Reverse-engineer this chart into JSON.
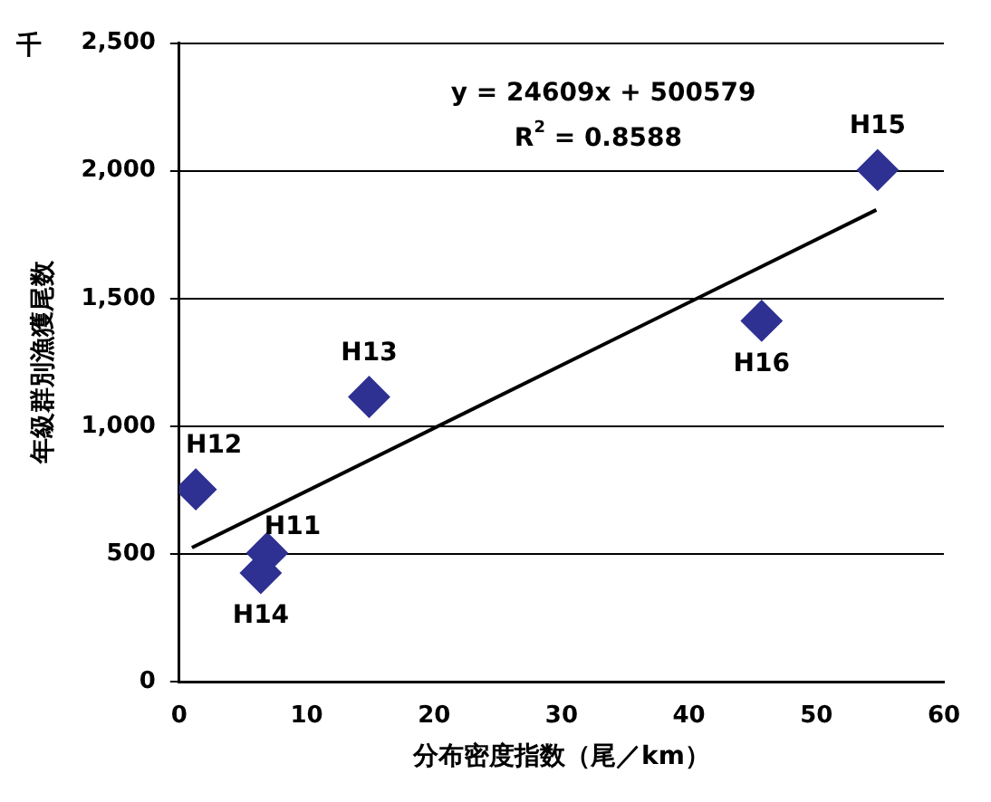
{
  "chart_data": {
    "type": "scatter",
    "xlabel": "分布密度指数（尾／km）",
    "ylabel": "年級群別漁獲尾数",
    "xlim": [
      0,
      60
    ],
    "xticks": [
      0,
      10,
      20,
      30,
      40,
      50,
      60
    ],
    "ylim": [
      0,
      2500
    ],
    "yticks": [
      {
        "value": 0,
        "label": "0"
      },
      {
        "value": 500,
        "label": "500"
      },
      {
        "value": 1000,
        "label": "1,000"
      },
      {
        "value": 1500,
        "label": "1,500"
      },
      {
        "value": 2000,
        "label": "2,000"
      },
      {
        "value": 2500,
        "label": "2,500"
      }
    ],
    "grid": "y",
    "legend": false,
    "series": [
      {
        "type": "scatter",
        "color": "#2e3192",
        "marker": "diamond",
        "x": [
          6.9,
          1.3,
          14.9,
          6.4,
          54.8,
          45.7
        ],
        "values": [
          504,
          753,
          1115,
          426,
          2003,
          1413
        ]
      },
      {
        "type": "line",
        "color": "#000000",
        "marker": "none",
        "x": [
          1,
          54.7
        ],
        "values": [
          525,
          1847
        ]
      }
    ],
    "annotations": [
      "千",
      "y = 24609x + 500579",
      "R$^{2}$ = 0.8588",
      {
        "text": "H11",
        "x": 6.9,
        "y": 504
      },
      {
        "text": "H12",
        "x": 1.3,
        "y": 753
      },
      {
        "text": "H13",
        "x": 14.9,
        "y": 1115
      },
      {
        "text": "H14",
        "x": 6.4,
        "y": 426
      },
      {
        "text": "H15",
        "x": 54.8,
        "y": 2003
      },
      {
        "text": "H16",
        "x": 45.7,
        "y": 1413
      }
    ]
  }
}
